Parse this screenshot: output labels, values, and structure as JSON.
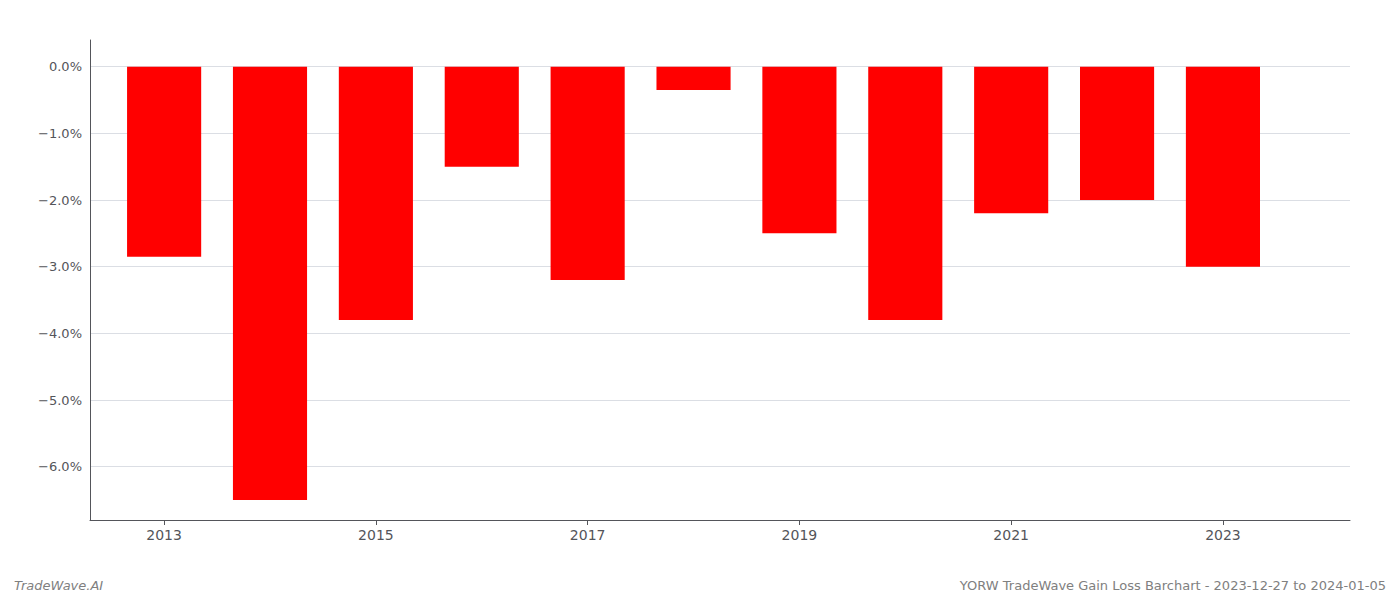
{
  "chart_data": {
    "type": "bar",
    "x": [
      2013,
      2014,
      2015,
      2016,
      2017,
      2018,
      2019,
      2020,
      2021,
      2022,
      2023
    ],
    "values": [
      -0.0285,
      -0.065,
      -0.038,
      -0.015,
      -0.032,
      -0.0035,
      -0.025,
      -0.038,
      -0.022,
      -0.02,
      -0.03
    ],
    "color": "#ff0000",
    "xlim": [
      2012.3,
      2024.2
    ],
    "xticks": [
      2013,
      2015,
      2017,
      2019,
      2021,
      2023
    ],
    "ylim": [
      -0.068,
      0.004
    ],
    "yticks": [
      {
        "value": -0.06,
        "label": "−6.0%"
      },
      {
        "value": -0.05,
        "label": "−5.0%"
      },
      {
        "value": -0.04,
        "label": "−4.0%"
      },
      {
        "value": -0.03,
        "label": "−3.0%"
      },
      {
        "value": -0.02,
        "label": "−2.0%"
      },
      {
        "value": -0.01,
        "label": "−1.0%"
      },
      {
        "value": 0,
        "label": "0.0%"
      }
    ],
    "grid": true,
    "annotations": [
      "TradeWave.AI",
      "YORW TradeWave Gain Loss Barchart - 2023-12-27 to 2024-01-05"
    ]
  }
}
